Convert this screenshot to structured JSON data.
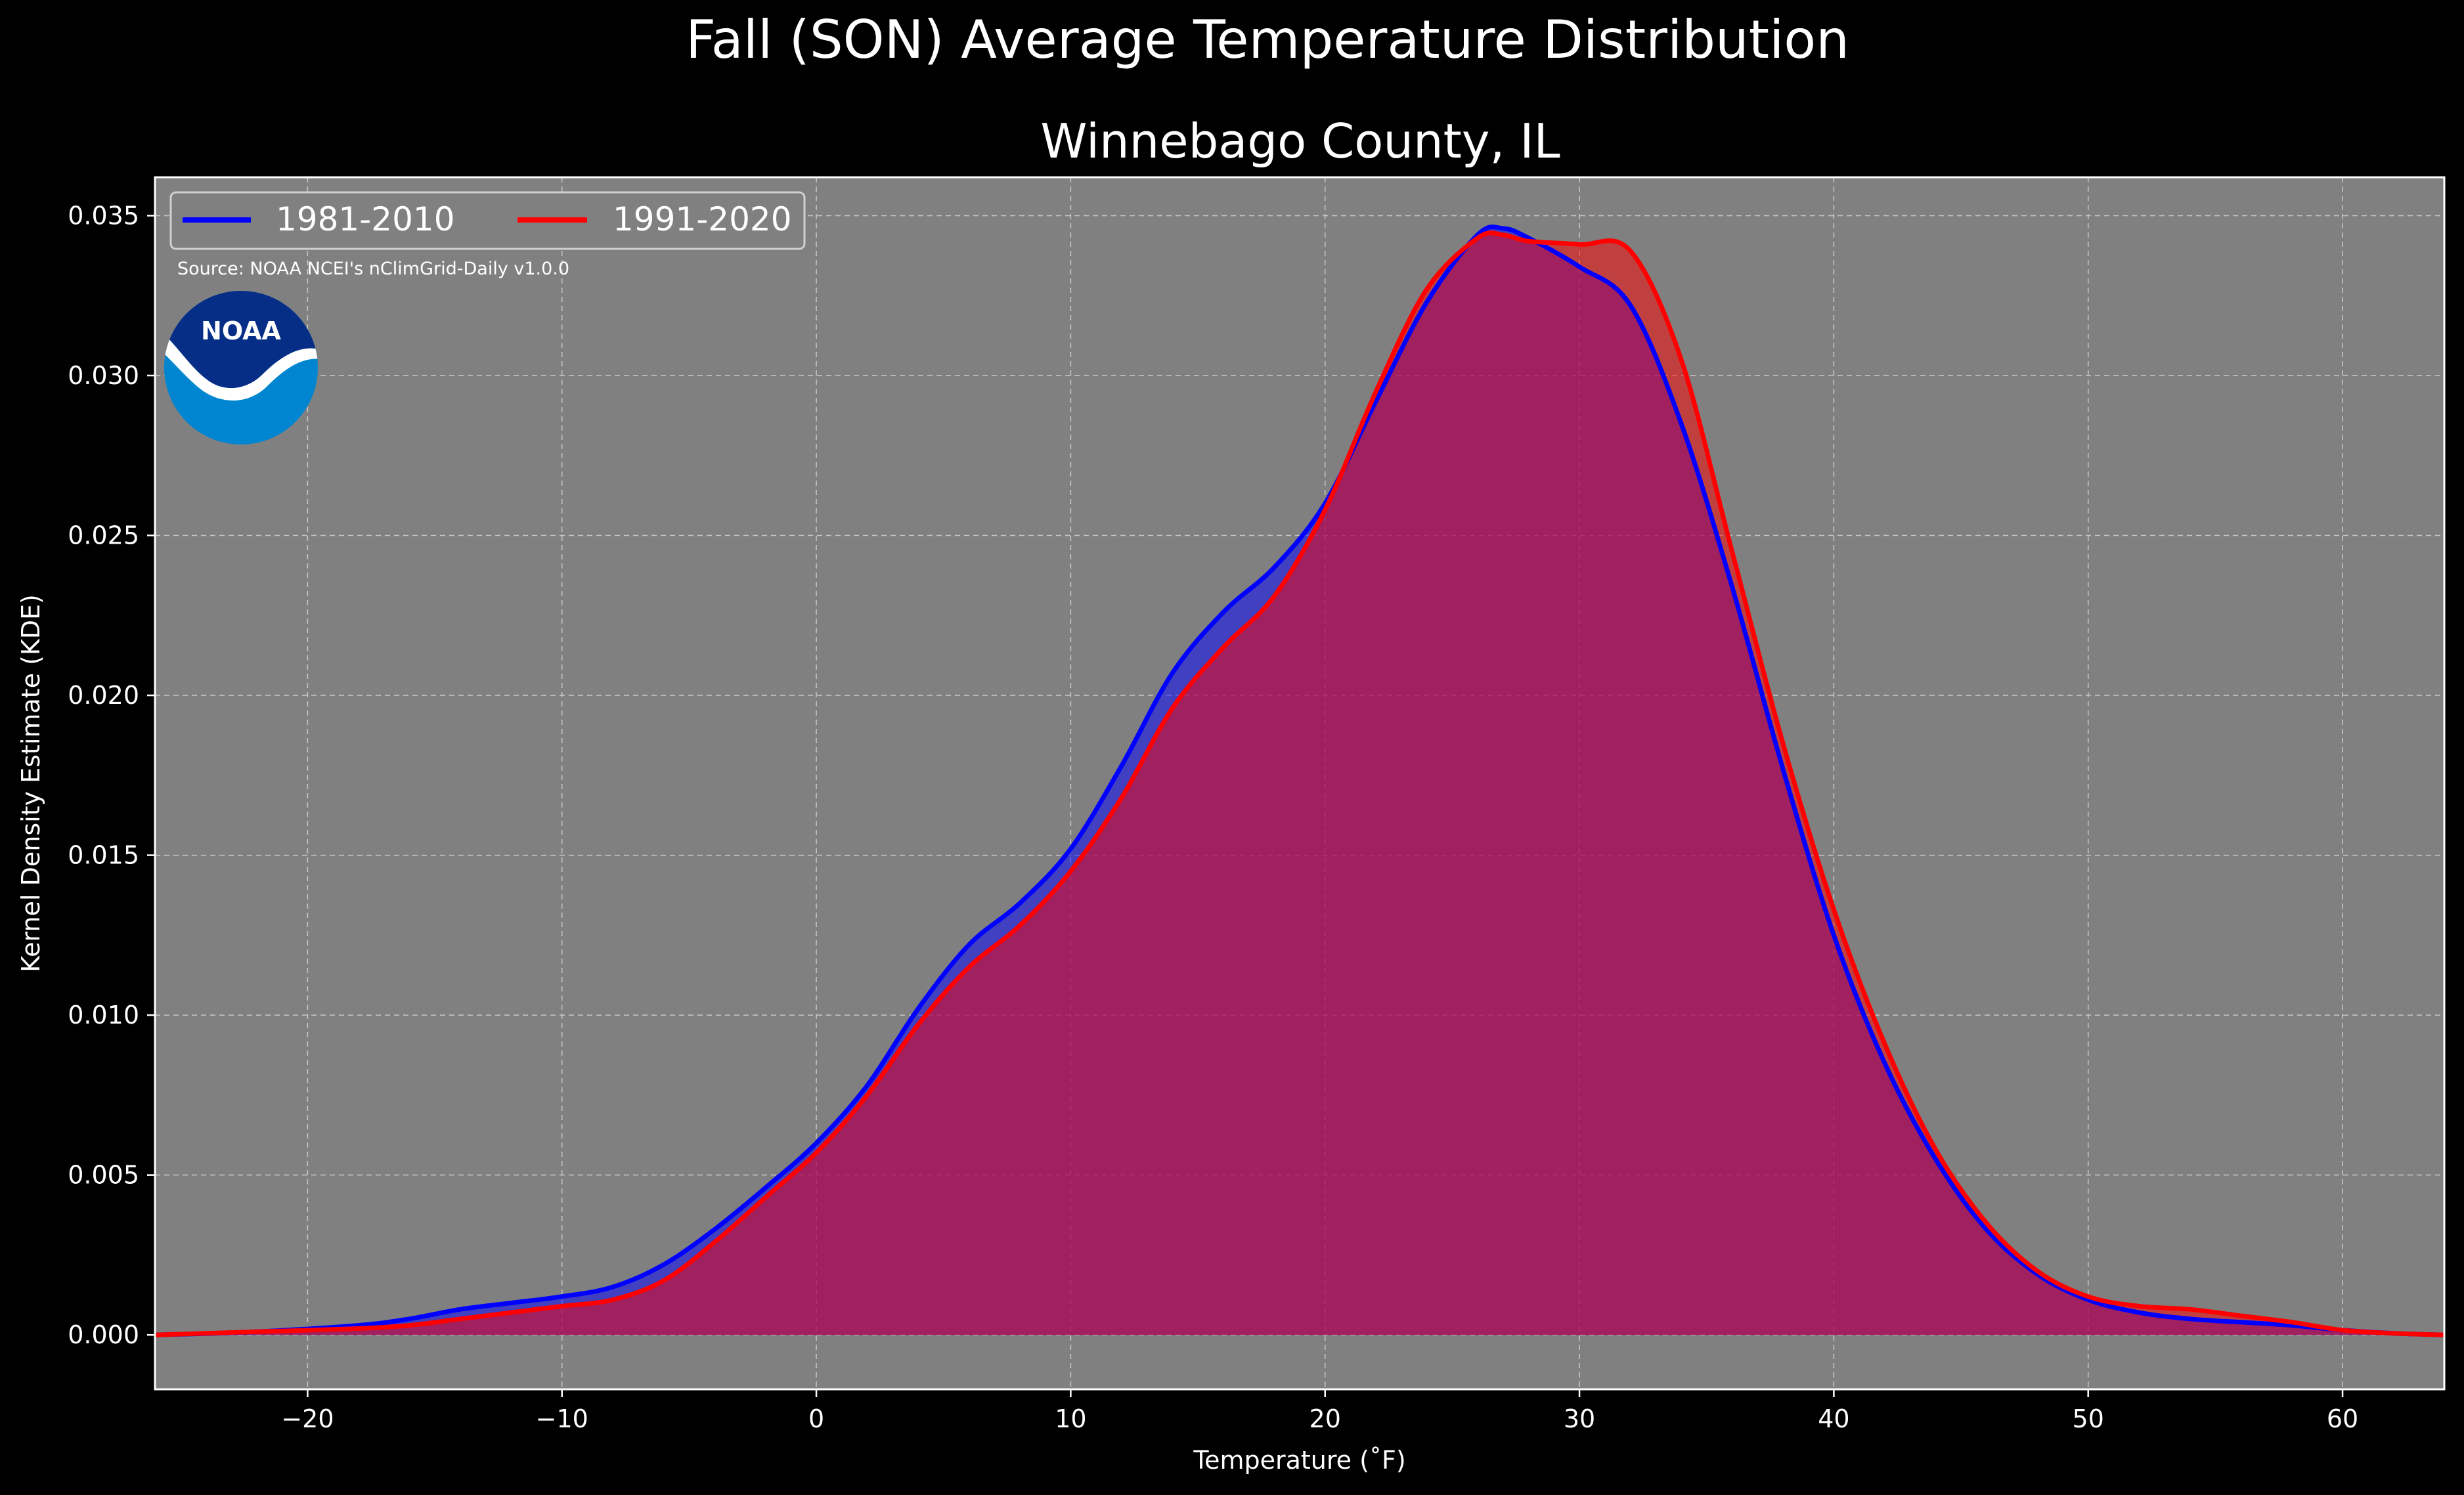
{
  "chart_data": {
    "type": "area",
    "title": "Fall (SON) Average Temperature Distribution",
    "subtitle": "Winnebago County, IL",
    "xlabel": "Temperature ($^\\circ$F)",
    "xlabel_display": "Temperature (˚F)",
    "ylabel": "Kernel Density Estimate (KDE)",
    "source_note": "Source: NOAA NCEI's nClimGrid-Daily v1.0.0",
    "logo_text": "NOAA",
    "xlim": [
      -26,
      64
    ],
    "ylim": [
      -0.0017,
      0.0362
    ],
    "x_ticks": [
      -20,
      -10,
      0,
      10,
      20,
      30,
      40,
      50,
      60
    ],
    "x_tick_labels": [
      "−20",
      "−10",
      "0",
      "10",
      "20",
      "30",
      "40",
      "50",
      "60"
    ],
    "y_ticks": [
      0.0,
      0.005,
      0.01,
      0.015,
      0.02,
      0.025,
      0.03,
      0.035
    ],
    "y_tick_labels": [
      "0.000",
      "0.005",
      "0.010",
      "0.015",
      "0.020",
      "0.025",
      "0.030",
      "0.035"
    ],
    "grid": true,
    "legend_position": "top-left",
    "background_color": "#000000",
    "plot_background_color": "#808080",
    "series": [
      {
        "name": "1981-2010",
        "color": "#0000ff",
        "fill_color": "#0000ff",
        "points": [
          [
            -26,
            0.0
          ],
          [
            -22,
            0.0001
          ],
          [
            -18,
            0.0003
          ],
          [
            -16,
            0.0005
          ],
          [
            -14,
            0.0008
          ],
          [
            -12,
            0.001
          ],
          [
            -10,
            0.0012
          ],
          [
            -8,
            0.0015
          ],
          [
            -6,
            0.0022
          ],
          [
            -4,
            0.0033
          ],
          [
            -2,
            0.0046
          ],
          [
            0,
            0.006
          ],
          [
            2,
            0.0078
          ],
          [
            4,
            0.0102
          ],
          [
            6,
            0.0122
          ],
          [
            8,
            0.0135
          ],
          [
            10,
            0.0152
          ],
          [
            12,
            0.0178
          ],
          [
            14,
            0.0207
          ],
          [
            16,
            0.0226
          ],
          [
            18,
            0.024
          ],
          [
            20,
            0.026
          ],
          [
            22,
            0.0292
          ],
          [
            24,
            0.0323
          ],
          [
            26,
            0.0344
          ],
          [
            27,
            0.0346
          ],
          [
            28,
            0.0343
          ],
          [
            30,
            0.0334
          ],
          [
            32,
            0.0322
          ],
          [
            34,
            0.0285
          ],
          [
            36,
            0.0234
          ],
          [
            38,
            0.0177
          ],
          [
            40,
            0.0125
          ],
          [
            42,
            0.0085
          ],
          [
            44,
            0.0055
          ],
          [
            46,
            0.0033
          ],
          [
            48,
            0.0019
          ],
          [
            50,
            0.0011
          ],
          [
            52,
            0.0007
          ],
          [
            54,
            0.0005
          ],
          [
            56,
            0.0004
          ],
          [
            58,
            0.0003
          ],
          [
            60,
            0.00015
          ],
          [
            62,
            5e-05
          ],
          [
            64,
            0.0
          ]
        ]
      },
      {
        "name": "1991-2020",
        "color": "#ff0000",
        "fill_color": "#ff0000",
        "points": [
          [
            -26,
            0.0
          ],
          [
            -22,
            0.0001
          ],
          [
            -18,
            0.0002
          ],
          [
            -16,
            0.0003
          ],
          [
            -14,
            0.0005
          ],
          [
            -12,
            0.0007
          ],
          [
            -10,
            0.0009
          ],
          [
            -8,
            0.0011
          ],
          [
            -6,
            0.0017
          ],
          [
            -4,
            0.0029
          ],
          [
            -2,
            0.0043
          ],
          [
            0,
            0.0057
          ],
          [
            2,
            0.0075
          ],
          [
            4,
            0.0097
          ],
          [
            6,
            0.0115
          ],
          [
            8,
            0.0128
          ],
          [
            10,
            0.0145
          ],
          [
            12,
            0.0168
          ],
          [
            14,
            0.0196
          ],
          [
            16,
            0.0215
          ],
          [
            18,
            0.0231
          ],
          [
            20,
            0.0258
          ],
          [
            22,
            0.0295
          ],
          [
            24,
            0.0327
          ],
          [
            26,
            0.0343
          ],
          [
            27,
            0.0344
          ],
          [
            28,
            0.0342
          ],
          [
            30,
            0.0341
          ],
          [
            32,
            0.0339
          ],
          [
            34,
            0.0305
          ],
          [
            36,
            0.0245
          ],
          [
            38,
            0.0185
          ],
          [
            40,
            0.0133
          ],
          [
            42,
            0.0091
          ],
          [
            44,
            0.0058
          ],
          [
            46,
            0.0035
          ],
          [
            48,
            0.002
          ],
          [
            50,
            0.0012
          ],
          [
            52,
            0.0009
          ],
          [
            54,
            0.0008
          ],
          [
            56,
            0.0006
          ],
          [
            58,
            0.0004
          ],
          [
            60,
            0.00015
          ],
          [
            62,
            5e-05
          ],
          [
            64,
            0.0
          ]
        ]
      }
    ]
  }
}
